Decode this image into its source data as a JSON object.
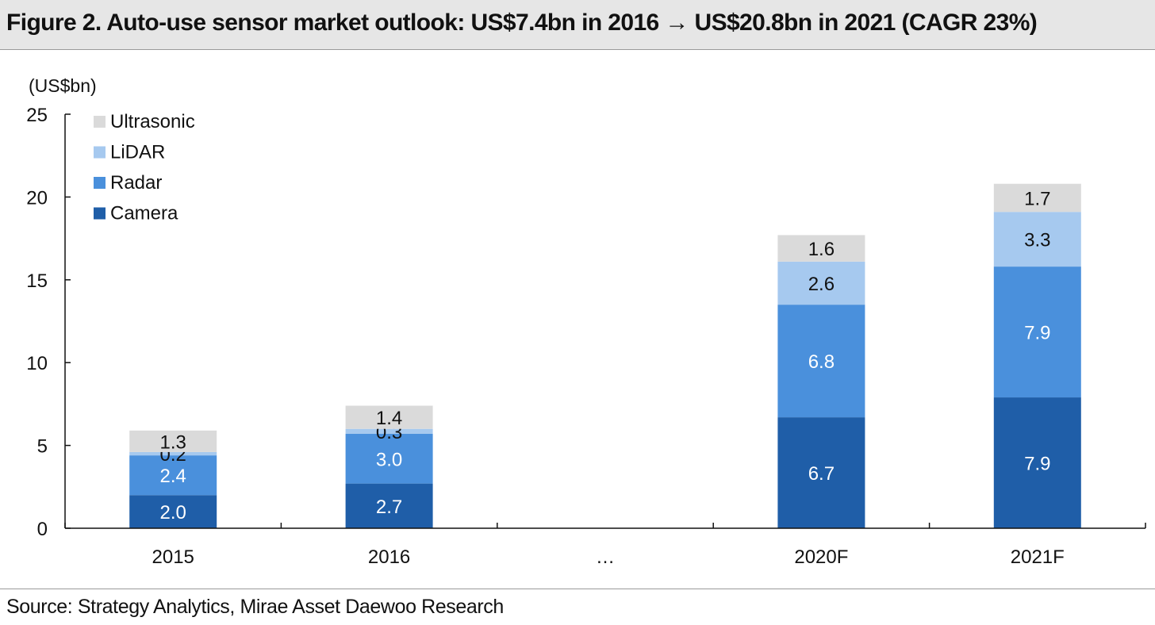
{
  "title": "Figure 2. Auto-use sensor market outlook: US$7.4bn in 2016 → US$20.8bn in 2021 (CAGR 23%)",
  "source": "Source: Strategy Analytics, Mirae Asset Daewoo Research",
  "chart_data": {
    "type": "bar",
    "stacked": true,
    "ylabel": "(US$bn)",
    "ylim": [
      0,
      25
    ],
    "yticks": [
      0,
      5,
      10,
      15,
      20,
      25
    ],
    "grid": false,
    "legend_position": "top-left",
    "categories": [
      "2015",
      "2016",
      "…",
      "2020F",
      "2021F"
    ],
    "series": [
      {
        "name": "Camera",
        "color": "#1f5ea8",
        "label_color": "#ffffff",
        "values": [
          2.0,
          2.7,
          null,
          6.7,
          7.9
        ],
        "labels": [
          "2.0",
          "2.7",
          "",
          "6.7",
          "7.9"
        ]
      },
      {
        "name": "Radar",
        "color": "#4a90dc",
        "label_color": "#ffffff",
        "values": [
          2.4,
          3.0,
          null,
          6.8,
          7.9
        ],
        "labels": [
          "2.4",
          "3.0",
          "",
          "6.8",
          "7.9"
        ]
      },
      {
        "name": "LiDAR",
        "color": "#a6c9ef",
        "label_color": "#111111",
        "values": [
          0.2,
          0.3,
          null,
          2.6,
          3.3
        ],
        "labels": [
          "0.2",
          "0.3",
          "",
          "2.6",
          "3.3"
        ]
      },
      {
        "name": "Ultrasonic",
        "color": "#dadada",
        "label_color": "#111111",
        "values": [
          1.3,
          1.4,
          null,
          1.6,
          1.7
        ],
        "labels": [
          "1.3",
          "1.4",
          "",
          "1.6",
          "1.7"
        ]
      }
    ]
  }
}
